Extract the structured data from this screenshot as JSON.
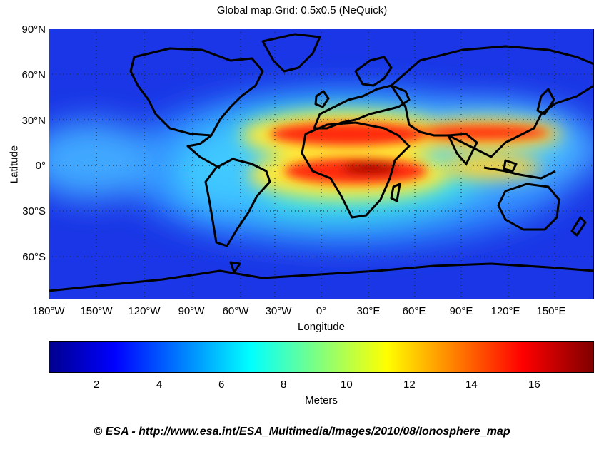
{
  "map": {
    "title": "Global map.Grid: 0.5x0.5 (NeQuick)",
    "xlabel": "Longitude",
    "ylabel": "Latitude",
    "lat_ticks": [
      "90°N",
      "60°N",
      "30°N",
      "0°",
      "30°S",
      "60°S"
    ],
    "lon_ticks": [
      "180°W",
      "150°W",
      "120°W",
      "90°W",
      "60°W",
      "30°W",
      "0°",
      "30°E",
      "60°E",
      "90°E",
      "120°E",
      "150°E"
    ],
    "background_color": "#1a3cff",
    "coastline_color": "#000000"
  },
  "colorbar": {
    "label": "Meters",
    "ticks": [
      "2",
      "4",
      "6",
      "8",
      "10",
      "12",
      "14",
      "16"
    ],
    "colors": [
      "#00008f",
      "#0000ff",
      "#00ffff",
      "#ffff00",
      "#ff0000",
      "#800000"
    ]
  },
  "credit": {
    "prefix": "© ESA - ",
    "url": "http://www.esa.int/ESA_Multimedia/Images/2010/08/Ionosphere_map"
  }
}
